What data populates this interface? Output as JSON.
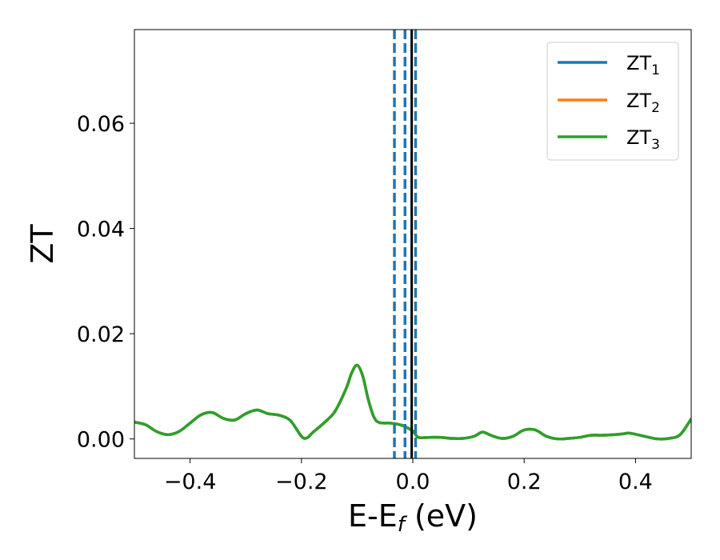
{
  "chart_data": {
    "type": "line",
    "xlabel": {
      "main": "E-E",
      "sub": "f",
      "unit": " (eV)"
    },
    "ylabel": "ZT",
    "xlim": [
      -0.5,
      0.5
    ],
    "ylim": [
      -0.0037,
      0.0778
    ],
    "x_ticks": [
      -0.4,
      -0.2,
      0.0,
      0.2,
      0.4
    ],
    "x_tick_labels": [
      "−0.4",
      "−0.2",
      "0.0",
      "0.2",
      "0.4"
    ],
    "y_ticks": [
      0.0,
      0.02,
      0.04,
      0.06
    ],
    "y_tick_labels": [
      "0.00",
      "0.02",
      "0.04",
      "0.06"
    ],
    "grid": false,
    "legend_position": "upper-right",
    "series": [
      {
        "name": "ZT1",
        "name_main": "ZT",
        "name_sub": "1",
        "color": "#1f77b4",
        "x": [
          -0.5,
          -0.48,
          -0.46,
          -0.44,
          -0.42,
          -0.4,
          -0.38,
          -0.36,
          -0.34,
          -0.32,
          -0.3,
          -0.28,
          -0.26,
          -0.24,
          -0.22,
          -0.2,
          -0.19,
          -0.18,
          -0.16,
          -0.14,
          -0.12,
          -0.11,
          -0.1,
          -0.09,
          -0.08,
          -0.07,
          -0.06,
          -0.04,
          -0.02,
          0.0,
          0.01,
          0.03,
          0.05,
          0.07,
          0.09,
          0.11,
          0.125,
          0.14,
          0.16,
          0.18,
          0.2,
          0.22,
          0.24,
          0.26,
          0.28,
          0.3,
          0.32,
          0.34,
          0.36,
          0.38,
          0.39,
          0.42,
          0.44,
          0.46,
          0.48,
          0.5
        ],
        "y": [
          0.0032,
          0.0027,
          0.0014,
          0.0008,
          0.0014,
          0.003,
          0.0046,
          0.005,
          0.0039,
          0.0036,
          0.0048,
          0.0055,
          0.0048,
          0.0045,
          0.0035,
          0.0005,
          0.0002,
          0.0012,
          0.003,
          0.0052,
          0.0095,
          0.0125,
          0.014,
          0.012,
          0.0075,
          0.0042,
          0.0031,
          0.003,
          0.0026,
          0.0015,
          0.0003,
          0.0003,
          0.0003,
          0.0001,
          0.0001,
          0.0005,
          0.0013,
          0.0007,
          0.0001,
          0.0005,
          0.0017,
          0.0017,
          0.0005,
          0.0,
          0.0001,
          0.0003,
          0.0007,
          0.0007,
          0.0008,
          0.001,
          0.0011,
          0.0004,
          0.0,
          0.0001,
          0.0008,
          0.0038
        ]
      },
      {
        "name": "ZT2",
        "name_main": "ZT",
        "name_sub": "2",
        "color": "#ff7f0e",
        "x": [
          -0.5,
          -0.48,
          -0.46,
          -0.44,
          -0.42,
          -0.4,
          -0.38,
          -0.36,
          -0.34,
          -0.32,
          -0.3,
          -0.28,
          -0.26,
          -0.24,
          -0.22,
          -0.2,
          -0.19,
          -0.18,
          -0.16,
          -0.14,
          -0.12,
          -0.11,
          -0.1,
          -0.09,
          -0.08,
          -0.07,
          -0.06,
          -0.04,
          -0.02,
          0.0,
          0.01,
          0.03,
          0.05,
          0.07,
          0.09,
          0.11,
          0.125,
          0.14,
          0.16,
          0.18,
          0.2,
          0.22,
          0.24,
          0.26,
          0.28,
          0.3,
          0.32,
          0.34,
          0.36,
          0.38,
          0.39,
          0.42,
          0.44,
          0.46,
          0.48,
          0.5
        ],
        "y": [
          0.0032,
          0.0027,
          0.0014,
          0.0008,
          0.0014,
          0.003,
          0.0046,
          0.005,
          0.0039,
          0.0036,
          0.0048,
          0.0055,
          0.0048,
          0.0045,
          0.0035,
          0.0005,
          0.0002,
          0.0012,
          0.003,
          0.0052,
          0.0095,
          0.0125,
          0.014,
          0.012,
          0.0075,
          0.0042,
          0.0031,
          0.003,
          0.0026,
          0.0015,
          0.0003,
          0.0003,
          0.0003,
          0.0001,
          0.0001,
          0.0005,
          0.0013,
          0.0007,
          0.0001,
          0.0005,
          0.0017,
          0.0017,
          0.0005,
          0.0,
          0.0001,
          0.0003,
          0.0007,
          0.0007,
          0.0008,
          0.001,
          0.0011,
          0.0004,
          0.0,
          0.0001,
          0.0008,
          0.0038
        ]
      },
      {
        "name": "ZT3",
        "name_main": "ZT",
        "name_sub": "3",
        "color": "#2ca02c",
        "x": [
          -0.5,
          -0.48,
          -0.46,
          -0.44,
          -0.42,
          -0.4,
          -0.38,
          -0.36,
          -0.34,
          -0.32,
          -0.3,
          -0.28,
          -0.26,
          -0.24,
          -0.22,
          -0.2,
          -0.19,
          -0.18,
          -0.16,
          -0.14,
          -0.12,
          -0.11,
          -0.1,
          -0.09,
          -0.08,
          -0.07,
          -0.06,
          -0.04,
          -0.02,
          0.0,
          0.01,
          0.03,
          0.05,
          0.07,
          0.09,
          0.11,
          0.125,
          0.14,
          0.16,
          0.18,
          0.2,
          0.22,
          0.24,
          0.26,
          0.28,
          0.3,
          0.32,
          0.34,
          0.36,
          0.38,
          0.39,
          0.42,
          0.44,
          0.46,
          0.48,
          0.5
        ],
        "y": [
          0.0032,
          0.0027,
          0.0014,
          0.0008,
          0.0014,
          0.003,
          0.0046,
          0.005,
          0.0039,
          0.0036,
          0.0048,
          0.0055,
          0.0048,
          0.0045,
          0.0035,
          0.0005,
          0.0002,
          0.0012,
          0.003,
          0.0052,
          0.0095,
          0.0125,
          0.014,
          0.012,
          0.0075,
          0.0042,
          0.0031,
          0.003,
          0.0026,
          0.0015,
          0.0003,
          0.0003,
          0.0003,
          0.0001,
          0.0001,
          0.0005,
          0.0013,
          0.0007,
          0.0001,
          0.0005,
          0.0017,
          0.0017,
          0.0005,
          0.0,
          0.0001,
          0.0003,
          0.0007,
          0.0007,
          0.0008,
          0.001,
          0.0011,
          0.0004,
          0.0,
          0.0001,
          0.0008,
          0.0038
        ]
      }
    ],
    "vertical_lines": [
      {
        "x": -0.033,
        "style": "dashed",
        "color": "#1f77b4"
      },
      {
        "x": -0.014,
        "style": "dashed",
        "color": "#1f77b4"
      },
      {
        "x": 0.005,
        "style": "dashed",
        "color": "#1f77b4"
      },
      {
        "x": -0.002,
        "style": "solid",
        "color": "#000000"
      }
    ]
  }
}
